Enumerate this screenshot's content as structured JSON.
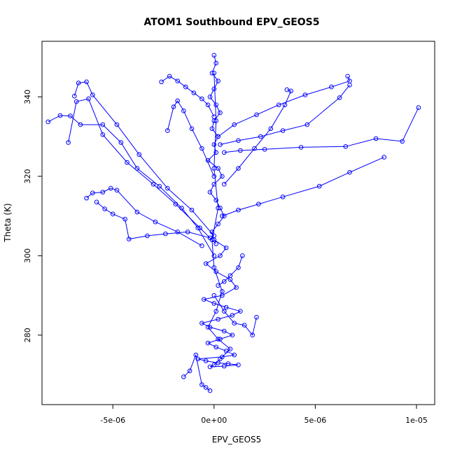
{
  "chart_data": {
    "type": "line",
    "title": "ATOM1 Southbound EPV_GEOS5",
    "xlabel": "EPV_GEOS5",
    "ylabel": "Theta (K)",
    "xlim": [
      -8.5e-06,
      1.09e-05
    ],
    "ylim": [
      262.5,
      354
    ],
    "xticks": [
      {
        "value": -5e-06,
        "label": "-5e-06"
      },
      {
        "value": 0,
        "label": "0e+00"
      },
      {
        "value": 5e-06,
        "label": "5e-06"
      },
      {
        "value": 1e-05,
        "label": "1e-05"
      }
    ],
    "yticks": [
      {
        "value": 280,
        "label": "280"
      },
      {
        "value": 300,
        "label": "300"
      },
      {
        "value": 320,
        "label": "320"
      },
      {
        "value": 340,
        "label": "340"
      }
    ],
    "grid": false,
    "legend": "none",
    "marker": "open-circle",
    "color": "#0000ff",
    "series": [
      {
        "x": [
          0.0,
          1e-07,
          -1e-07,
          2e-07,
          0.0,
          -2e-07,
          1e-07,
          3e-07,
          0.0,
          -1e-07,
          2e-07,
          0.0,
          1e-07,
          -3e-07,
          2e-07,
          4e-07,
          0.0,
          -2e-07,
          1e-07,
          3e-07,
          5e-07,
          2e-07,
          -1e-07,
          0.0,
          6e-07,
          3e-07,
          -4e-07,
          1e-07,
          8e-07,
          1.1e-06,
          4e-07,
          -5e-07,
          0.0,
          6e-07,
          1.3e-06,
          9e-07,
          2e-07,
          -6e-07,
          -2e-07,
          5e-07,
          9e-07,
          3e-07,
          -3e-07,
          1e-07,
          6e-07,
          1e-06,
          4e-07,
          -8e-07,
          -4e-07,
          2e-07,
          7e-07,
          1.2e-06,
          5e-07,
          -2e-07,
          0.0,
          3e-07,
          8e-07,
          2e-07,
          -3e-07,
          1e-07,
          4e-07,
          0.0,
          -1e-07,
          2e-07,
          0.0,
          1e-07,
          0.0
        ],
        "y": [
          350.5,
          348.5,
          346.0,
          344.0,
          342.0,
          340.0,
          338.0,
          336.0,
          334.0,
          332.0,
          330.0,
          328.0,
          326.0,
          324.0,
          322.0,
          320.0,
          318.0,
          316.0,
          314.0,
          312.0,
          310.0,
          308.0,
          306.0,
          304.0,
          302.0,
          300.0,
          298.0,
          296.0,
          294.0,
          292.0,
          290.0,
          289.0,
          288.0,
          287.0,
          286.0,
          285.0,
          284.0,
          283.0,
          282.0,
          281.0,
          280.0,
          279.0,
          278.0,
          277.0,
          276.0,
          275.0,
          274.5,
          274.0,
          273.5,
          273.0,
          272.8,
          272.5,
          272.2,
          272.0,
          272.5,
          274.0,
          276.5,
          279.0,
          282.0,
          286.0,
          291.0,
          297.0,
          304.0,
          312.0,
          322.0,
          334.0,
          346.0
        ]
      },
      {
        "x": [
          -8.2e-06,
          -7.6e-06,
          -7.1e-06,
          -6.6e-06,
          -5.5e-06,
          -4.6e-06,
          -3.8e-06,
          -2.7e-06,
          -1.6e-06,
          -8e-07,
          0.0
        ],
        "y": [
          333.7,
          335.3,
          335.2,
          333.0,
          333.0,
          328.5,
          322.0,
          317.5,
          312.0,
          307.0,
          300.0
        ]
      },
      {
        "x": [
          -6.9e-06,
          -6.7e-06,
          -6.3e-06,
          -6e-06,
          -4.8e-06,
          -3.7e-06,
          -2.3e-06,
          -1.1e-06,
          0.0
        ],
        "y": [
          340.2,
          343.5,
          343.8,
          340.5,
          333.0,
          325.5,
          317.0,
          311.5,
          305.0
        ]
      },
      {
        "x": [
          -7.2e-06,
          -6.8e-06,
          -6.2e-06,
          -5.5e-06,
          -4.3e-06,
          -3e-06,
          -1.9e-06,
          -7e-07,
          1e-07
        ],
        "y": [
          328.5,
          338.8,
          339.5,
          330.5,
          323.5,
          318.0,
          313.0,
          307.0,
          303.0
        ]
      },
      {
        "x": [
          -6.3e-06,
          -6e-06,
          -5.5e-06,
          -5.1e-06,
          -4.8e-06,
          -3.8e-06,
          -2.9e-06,
          -1.8e-06,
          -6e-07
        ],
        "y": [
          314.5,
          315.8,
          316.0,
          317.0,
          316.5,
          311.0,
          308.5,
          306.0,
          302.5
        ]
      },
      {
        "x": [
          -5.8e-06,
          -5.4e-06,
          -5e-06,
          -4.4e-06,
          -4.2e-06,
          -3.3e-06,
          -2.4e-06,
          -1.3e-06,
          -2e-07
        ],
        "y": [
          313.5,
          311.8,
          310.5,
          309.2,
          304.2,
          305.0,
          305.5,
          306.0,
          304.5
        ]
      },
      {
        "x": [
          -2.6e-06,
          -2.2e-06,
          -1.8e-06,
          -1.4e-06,
          -1e-06,
          -6e-07,
          -3e-07,
          0.0
        ],
        "y": [
          343.8,
          345.2,
          344.0,
          342.5,
          341.0,
          339.5,
          338.0,
          335.0
        ]
      },
      {
        "x": [
          -2.3e-06,
          -2e-06,
          -1.8e-06,
          -1.5e-06,
          -1.1e-06,
          -6e-07,
          0.0
        ],
        "y": [
          331.5,
          337.5,
          339.0,
          336.5,
          332.0,
          327.0,
          320.0
        ]
      },
      {
        "x": [
          6.6e-06,
          6.7e-06,
          5.8e-06,
          4.5e-06,
          3.2e-06,
          2.1e-06,
          1e-06,
          2e-07
        ],
        "y": [
          345.2,
          344.0,
          342.5,
          340.5,
          338.0,
          335.5,
          333.0,
          330.0
        ]
      },
      {
        "x": [
          6.7e-06,
          6.2e-06,
          4.6e-06,
          3.4e-06,
          2.3e-06,
          1.2e-06,
          3e-07
        ],
        "y": [
          343.0,
          339.8,
          333.0,
          331.5,
          330.0,
          329.0,
          328.0
        ]
      },
      {
        "x": [
          1.01e-05,
          9.3e-06,
          8e-06,
          6.5e-06,
          4.3e-06,
          2.5e-06,
          1.3e-06,
          5e-07
        ],
        "y": [
          337.3,
          328.8,
          329.5,
          327.5,
          327.3,
          326.8,
          326.5,
          326.0
        ]
      },
      {
        "x": [
          8.4e-06,
          6.7e-06,
          5.2e-06,
          3.4e-06,
          2.2e-06,
          1.2e-06,
          4e-07
        ],
        "y": [
          324.8,
          321.0,
          317.5,
          314.8,
          313.0,
          311.5,
          310.0
        ]
      },
      {
        "x": [
          3.6e-06,
          3.8e-06,
          3.5e-06,
          2.8e-06,
          2e-06,
          1.2e-06,
          5e-07
        ],
        "y": [
          341.8,
          341.5,
          338.0,
          332.0,
          327.0,
          322.0,
          318.0
        ]
      },
      {
        "x": [
          2.1e-06,
          1.9e-06,
          1.5e-06,
          1e-06,
          5e-07,
          0.0
        ],
        "y": [
          284.5,
          280.0,
          282.5,
          283.0,
          286.0,
          290.0
        ]
      },
      {
        "x": [
          -1.5e-06,
          -1.2e-06,
          -9e-07,
          -6e-07,
          -4e-07,
          -2e-07
        ],
        "y": [
          269.5,
          271.0,
          275.0,
          267.5,
          266.8,
          266.0
        ]
      },
      {
        "x": [
          1.4e-06,
          1.2e-06,
          8e-07,
          5e-07,
          2e-07
        ],
        "y": [
          300.0,
          297.0,
          295.0,
          293.5,
          292.5
        ]
      }
    ]
  }
}
